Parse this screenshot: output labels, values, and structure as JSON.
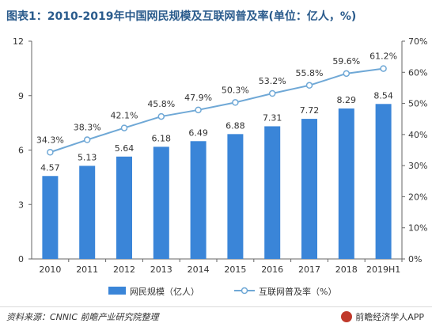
{
  "title": "图表1：2010-2019年中国网民规模及互联网普及率(单位：亿人，%)",
  "source": "资料来源：CNNIC 前瞻产业研究院整理",
  "brand": "前瞻经济学人APP",
  "colors": {
    "bar": "#3a85d8",
    "line": "#6fa8d6",
    "title": "#2a5b8c",
    "axis": "#666666",
    "grid": "#e0e0e0"
  },
  "chart_data": {
    "type": "bar",
    "categories": [
      "2010",
      "2011",
      "2012",
      "2013",
      "2014",
      "2015",
      "2016",
      "2017",
      "2018",
      "2019H1"
    ],
    "series": [
      {
        "name": "网民规模（亿人）",
        "type": "bar",
        "axis": "left",
        "values": [
          4.57,
          5.13,
          5.64,
          6.18,
          6.49,
          6.88,
          7.31,
          7.72,
          8.29,
          8.54
        ],
        "labels": [
          "4.57",
          "5.13",
          "5.64",
          "6.18",
          "6.49",
          "6.88",
          "7.31",
          "7.72",
          "8.29",
          "8.54"
        ]
      },
      {
        "name": "互联网普及率（%）",
        "type": "line",
        "axis": "right",
        "values": [
          34.3,
          38.3,
          42.1,
          45.8,
          47.9,
          50.3,
          53.2,
          55.8,
          59.6,
          61.2
        ],
        "labels": [
          "34.3%",
          "38.3%",
          "42.1%",
          "45.8%",
          "47.9%",
          "50.3%",
          "53.2%",
          "55.8%",
          "59.6%",
          "61.2%"
        ]
      }
    ],
    "y_left": {
      "ylim": [
        0,
        12
      ],
      "ticks": [
        "0",
        "3",
        "6",
        "9",
        "12"
      ]
    },
    "y_right": {
      "ylim": [
        0,
        70
      ],
      "ticks": [
        "0%",
        "10%",
        "20%",
        "30%",
        "40%",
        "50%",
        "60%",
        "70%"
      ]
    },
    "legend_position": "bottom",
    "grid": false
  }
}
